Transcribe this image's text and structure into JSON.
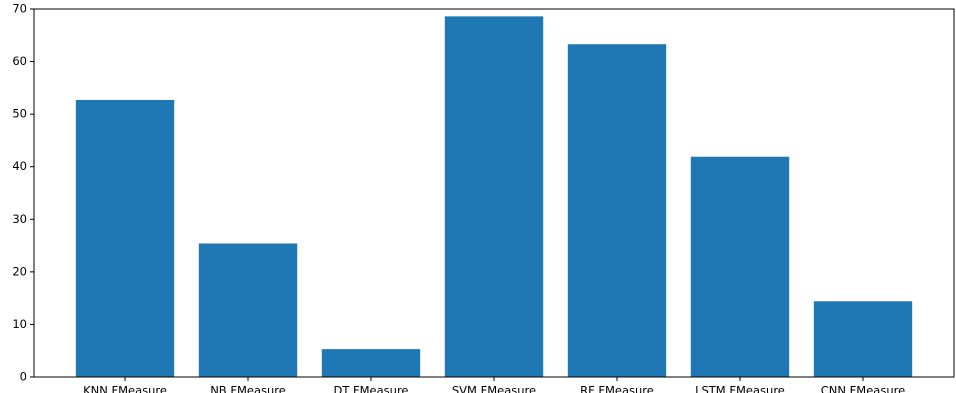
{
  "chart_data": {
    "type": "bar",
    "categories": [
      "KNN FMeasure",
      "NB FMeasure",
      "DT FMeasure",
      "SVM FMeasure",
      "RF FMeasure",
      "LSTM FMeasure",
      "CNN FMeasure"
    ],
    "values": [
      52.7,
      25.4,
      5.3,
      68.6,
      63.3,
      41.9,
      14.4
    ],
    "title": "",
    "xlabel": "",
    "ylabel": "",
    "ylim": [
      0,
      70
    ],
    "yticks": [
      0,
      10,
      20,
      30,
      40,
      50,
      60,
      70
    ],
    "bar_color": "#1f77b4",
    "grid": false,
    "legend": "none"
  }
}
